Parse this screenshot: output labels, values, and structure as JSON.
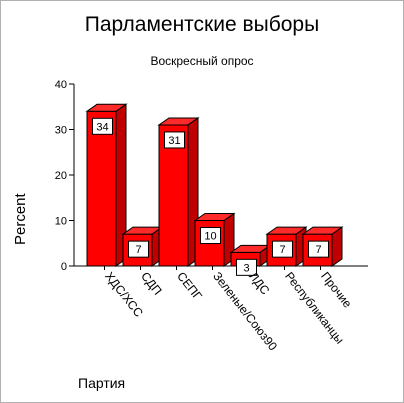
{
  "chart_data": {
    "type": "bar",
    "title": "Парламентские выборы",
    "subtitle": "Воскресный опрос",
    "xlabel": "Партия",
    "ylabel": "Percent",
    "categories": [
      "ХДС/ХСС",
      "СДП",
      "СЕПГ",
      "Зеленые/Союз90",
      "ЛДС",
      "Республиканцы",
      "Прочие"
    ],
    "values": [
      34,
      7,
      31,
      10,
      3,
      7,
      7
    ],
    "ylim": [
      0,
      40
    ],
    "yticks": [
      0,
      10,
      20,
      30,
      40
    ],
    "grid": false,
    "style": "3d",
    "bar_color": "#ff0000"
  }
}
